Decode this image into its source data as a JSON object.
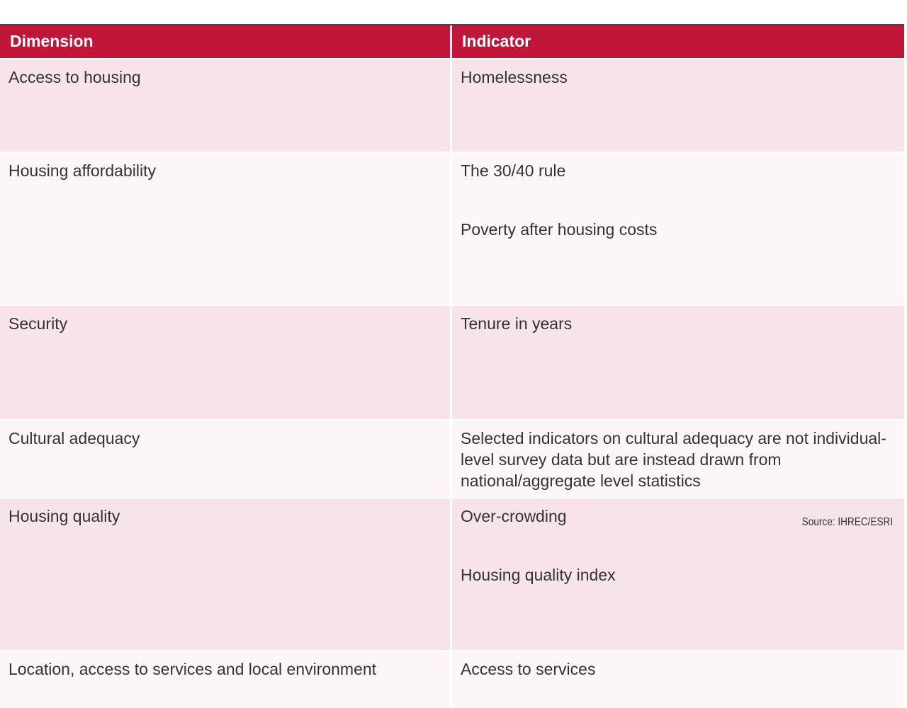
{
  "table": {
    "headers": {
      "dimension": "Dimension",
      "indicator": "Indicator"
    },
    "rows": [
      {
        "dimension": "Access to housing",
        "indicators": [
          "Homelessness"
        ]
      },
      {
        "dimension": "Housing affordability",
        "indicators": [
          "The 30/40 rule",
          "Poverty after housing costs"
        ]
      },
      {
        "dimension": "Security",
        "indicators": [
          "Tenure in years"
        ]
      },
      {
        "dimension": "Cultural adequacy",
        "indicators": [
          "Selected indicators on cultural adequacy are not individual-level survey data but are instead drawn from national/aggregate level statistics"
        ]
      },
      {
        "dimension": "Housing quality",
        "indicators": [
          "Over-crowding",
          "Housing quality index"
        ]
      },
      {
        "dimension": "Location, access to services and local environment",
        "indicators": [
          "Access to services"
        ]
      }
    ]
  },
  "source_note": "Source: IHREC/ESRI",
  "colors": {
    "header_bg": "#c0163a",
    "row_pink": "#f7e4e8",
    "row_light": "#fdf6f7"
  }
}
